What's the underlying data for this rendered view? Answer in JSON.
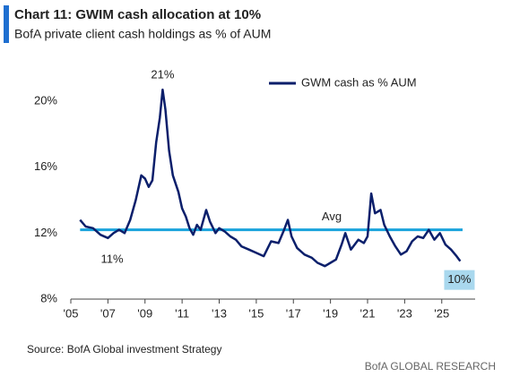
{
  "chart_data": {
    "type": "line",
    "title": "Chart 11: GWIM cash allocation at 10%",
    "subtitle": "BofA private client cash holdings as % of AUM",
    "source": "Source: BofA Global investment Strategy",
    "footer": "BofA GLOBAL RESEARCH",
    "x": [
      2005.5,
      2005.8,
      2006.2,
      2006.6,
      2007.0,
      2007.3,
      2007.6,
      2007.9,
      2008.2,
      2008.5,
      2008.8,
      2009.0,
      2009.2,
      2009.4,
      2009.6,
      2009.8,
      2009.95,
      2010.1,
      2010.3,
      2010.5,
      2010.8,
      2011.0,
      2011.2,
      2011.4,
      2011.6,
      2011.8,
      2012.0,
      2012.3,
      2012.5,
      2012.8,
      2013.0,
      2013.3,
      2013.6,
      2013.9,
      2014.2,
      2014.6,
      2015.0,
      2015.4,
      2015.8,
      2016.2,
      2016.5,
      2016.7,
      2016.9,
      2017.2,
      2017.6,
      2018.0,
      2018.3,
      2018.7,
      2019.0,
      2019.3,
      2019.6,
      2019.8,
      2020.1,
      2020.5,
      2020.8,
      2021.0,
      2021.2,
      2021.4,
      2021.7,
      2021.9,
      2022.2,
      2022.5,
      2022.8,
      2023.1,
      2023.4,
      2023.7,
      2024.0,
      2024.3,
      2024.6,
      2024.9,
      2025.2,
      2025.5,
      2025.8,
      2026.0
    ],
    "series": [
      {
        "name": "GWM cash as % AUM",
        "color": "#0b1f6b",
        "values": [
          12.8,
          12.4,
          12.3,
          11.9,
          11.7,
          12.0,
          12.2,
          12.0,
          12.8,
          14.0,
          15.5,
          15.3,
          14.8,
          15.2,
          17.5,
          19.0,
          20.7,
          19.5,
          17.0,
          15.5,
          14.5,
          13.5,
          13.0,
          12.3,
          11.9,
          12.5,
          12.2,
          13.4,
          12.7,
          12.0,
          12.3,
          12.1,
          11.8,
          11.6,
          11.2,
          11.0,
          10.8,
          10.6,
          11.5,
          11.4,
          12.2,
          12.8,
          11.8,
          11.1,
          10.7,
          10.5,
          10.2,
          10.0,
          10.2,
          10.4,
          11.3,
          12.0,
          11.0,
          11.6,
          11.4,
          11.8,
          14.4,
          13.2,
          13.4,
          12.5,
          11.8,
          11.2,
          10.7,
          10.9,
          11.5,
          11.8,
          11.7,
          12.2,
          11.6,
          12.0,
          11.3,
          11.0,
          10.6,
          10.3
        ]
      }
    ],
    "average": {
      "label": "Avg",
      "value": 12.2,
      "color": "#1aa3dc"
    },
    "annotations": [
      "21%",
      "11%",
      "10%"
    ],
    "xlim": [
      2005,
      2026.8
    ],
    "ylim": [
      8,
      21.5
    ],
    "xticks": [
      {
        "value": 2005,
        "label": "'05"
      },
      {
        "value": 2007,
        "label": "'07"
      },
      {
        "value": 2009,
        "label": "'09"
      },
      {
        "value": 2011,
        "label": "'11"
      },
      {
        "value": 2013,
        "label": "'13"
      },
      {
        "value": 2015,
        "label": "'15"
      },
      {
        "value": 2017,
        "label": "'17"
      },
      {
        "value": 2019,
        "label": "'19"
      },
      {
        "value": 2021,
        "label": "'21"
      },
      {
        "value": 2023,
        "label": "'23"
      },
      {
        "value": 2025,
        "label": "'25"
      }
    ],
    "yticks": [
      {
        "value": 8,
        "label": "8%"
      },
      {
        "value": 12,
        "label": "12%"
      },
      {
        "value": 16,
        "label": "16%"
      },
      {
        "value": 20,
        "label": "20%"
      }
    ],
    "grid": false,
    "legend": "top-right"
  }
}
